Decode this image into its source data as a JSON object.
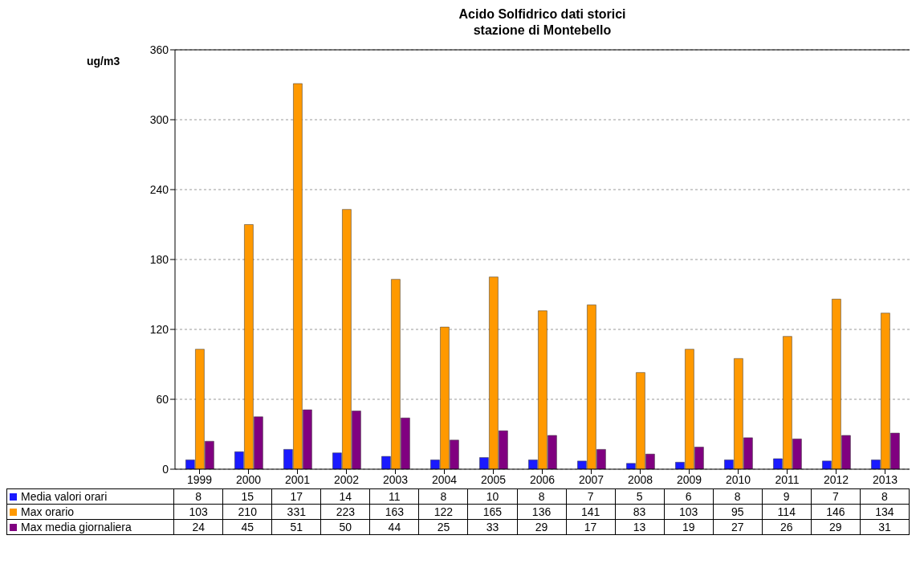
{
  "chart_data": {
    "type": "bar",
    "title": "Acido Solfidrico dati storici\nstazione di Montebello",
    "ylabel": "ug/m3",
    "categories": [
      "1999",
      "2000",
      "2001",
      "2002",
      "2003",
      "2004",
      "2005",
      "2006",
      "2007",
      "2008",
      "2009",
      "2010",
      "2011",
      "2012",
      "2013"
    ],
    "series": [
      {
        "name": "Media valori orari",
        "color": "#1a1aff",
        "values": [
          8,
          15,
          17,
          14,
          11,
          8,
          10,
          8,
          7,
          5,
          6,
          8,
          9,
          7,
          8
        ]
      },
      {
        "name": "Max orario",
        "color": "#ff9900",
        "values": [
          103,
          210,
          331,
          223,
          163,
          122,
          165,
          136,
          141,
          83,
          103,
          95,
          114,
          146,
          134
        ]
      },
      {
        "name": "Max media giornaliera",
        "color": "#800080",
        "values": [
          24,
          45,
          51,
          50,
          44,
          25,
          33,
          29,
          17,
          13,
          19,
          27,
          26,
          29,
          31
        ]
      }
    ],
    "ylim": [
      0,
      360
    ],
    "yticks": [
      0,
      60,
      120,
      180,
      240,
      300,
      360
    ],
    "grid": "y",
    "legend": "bottom",
    "data_labels": true
  }
}
